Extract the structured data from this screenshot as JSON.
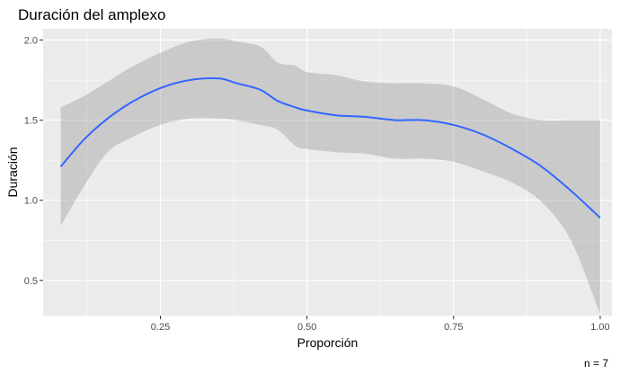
{
  "chart_data": {
    "type": "line",
    "title": "Duración del amplexo",
    "xlabel": "Proporción",
    "ylabel": "Duración",
    "caption": "n = 7",
    "xlim": [
      0.05,
      1.02
    ],
    "ylim": [
      0.28,
      2.07
    ],
    "x_ticks": [
      0.25,
      0.5,
      0.75,
      1.0
    ],
    "x_tick_labels": [
      "0.25",
      "0.50",
      "0.75",
      "1.00"
    ],
    "y_ticks": [
      0.5,
      1.0,
      1.5,
      2.0
    ],
    "y_tick_labels": [
      "0.5",
      "1.0",
      "1.5",
      "2.0"
    ],
    "grid": true,
    "series": [
      {
        "color": "#3366ff",
        "x": [
          0.08,
          0.12,
          0.16,
          0.2,
          0.25,
          0.3,
          0.35,
          0.38,
          0.42,
          0.45,
          0.48,
          0.5,
          0.55,
          0.6,
          0.65,
          0.7,
          0.75,
          0.8,
          0.85,
          0.9,
          0.95,
          1.0
        ],
        "y": [
          1.21,
          1.38,
          1.51,
          1.61,
          1.7,
          1.75,
          1.76,
          1.73,
          1.69,
          1.62,
          1.58,
          1.56,
          1.53,
          1.52,
          1.5,
          1.5,
          1.47,
          1.41,
          1.32,
          1.21,
          1.06,
          0.89
        ],
        "lower": [
          0.84,
          1.09,
          1.3,
          1.39,
          1.47,
          1.51,
          1.51,
          1.5,
          1.47,
          1.44,
          1.34,
          1.32,
          1.3,
          1.29,
          1.26,
          1.26,
          1.24,
          1.18,
          1.11,
          0.99,
          0.75,
          0.29
        ],
        "upper": [
          1.58,
          1.65,
          1.74,
          1.83,
          1.92,
          1.99,
          2.01,
          1.99,
          1.96,
          1.86,
          1.84,
          1.8,
          1.78,
          1.74,
          1.73,
          1.73,
          1.71,
          1.63,
          1.54,
          1.5,
          1.5,
          1.5
        ]
      }
    ]
  }
}
